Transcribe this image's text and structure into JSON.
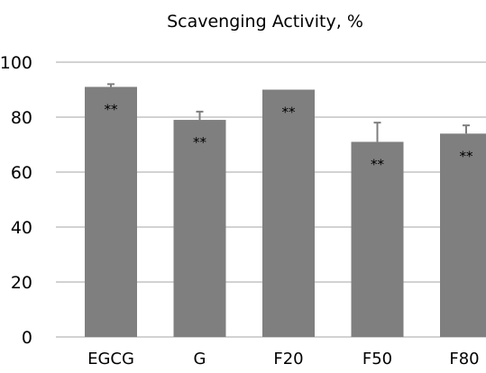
{
  "chart_data": {
    "type": "bar",
    "title": "Scavenging Activity, %",
    "xlabel": "",
    "ylabel": "",
    "categories": [
      "EGCG",
      "G",
      "F20",
      "F50",
      "F80"
    ],
    "values": [
      91,
      79,
      90,
      71,
      74
    ],
    "errors": [
      1,
      3,
      0,
      7,
      3
    ],
    "annotations": [
      "**",
      "**",
      "**",
      "**",
      "**"
    ],
    "ylim": [
      0,
      100
    ],
    "yticks": [
      "0",
      "20",
      "40",
      "60",
      "80",
      "100"
    ],
    "grid": true,
    "legend": "none",
    "colors": {
      "bar": "#7f7f7f",
      "grid": "#a6a6a6",
      "error_bar": "#7f7f7f",
      "text": "#000000"
    }
  }
}
